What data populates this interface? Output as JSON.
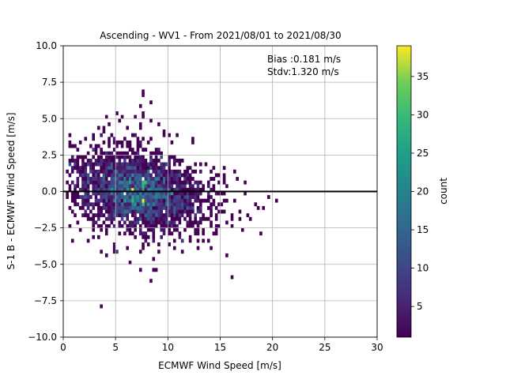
{
  "chart_data": {
    "type": "heatmap",
    "title": "Ascending - WV1 - From 2021/08/01 to 2021/08/30",
    "xlabel": "ECMWF Wind Speed [m/s]",
    "ylabel": "S-1 B - ECMWF Wind Speed [m/s]",
    "xlim": [
      0,
      30
    ],
    "ylim": [
      -10,
      10
    ],
    "xticks": [
      0,
      5,
      10,
      15,
      20,
      25,
      30
    ],
    "xtick_labels": [
      "0",
      "5",
      "10",
      "15",
      "20",
      "25",
      "30"
    ],
    "yticks": [
      -10,
      -7.5,
      -5,
      -2.5,
      0,
      2.5,
      5,
      7.5,
      10
    ],
    "ytick_labels": [
      "−10.0",
      "−7.5",
      "−5.0",
      "−2.5",
      "0.0",
      "2.5",
      "5.0",
      "7.5",
      "10.0"
    ],
    "grid": true,
    "reference_line_y": 0,
    "annotations": [
      "Bias :0.181 m/s",
      "Stdv:1.320 m/s"
    ],
    "colorbar": {
      "label": "count",
      "colormap": "viridis",
      "range": [
        1,
        39
      ],
      "ticks": [
        5,
        10,
        15,
        20,
        25,
        30,
        35
      ],
      "tick_labels": [
        "5",
        "10",
        "15",
        "20",
        "25",
        "30",
        "35"
      ]
    },
    "density": {
      "bin_size": [
        0.25,
        0.25
      ],
      "peak": [
        7.2,
        0.0
      ],
      "peak_count": 39,
      "spread_x": 3.2,
      "spread_y": 1.3,
      "slope": -0.1,
      "points": 2600
    }
  }
}
